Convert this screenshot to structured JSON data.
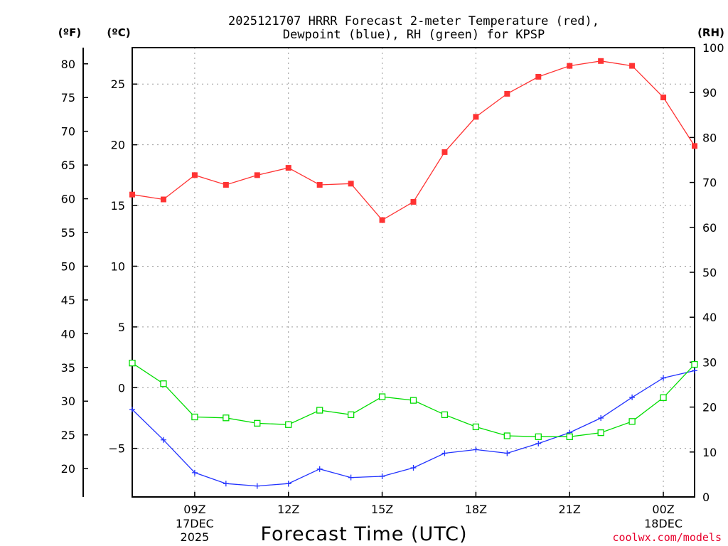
{
  "chart_data": {
    "type": "line",
    "title_line1": "2025121707 HRRR Forecast 2-meter Temperature (red),",
    "title_line2": "Dewpoint (blue), RH (green) for KPSP",
    "units": {
      "fahrenheit": "(ºF)",
      "celsius": "(ºC)",
      "rh": "(RH)"
    },
    "xlabel": "Forecast Time (UTC)",
    "credit": "coolwx.com/models",
    "x_hours": [
      7,
      8,
      9,
      10,
      11,
      12,
      13,
      14,
      15,
      16,
      17,
      18,
      19,
      20,
      21,
      22,
      23,
      24,
      25
    ],
    "xlim": [
      7,
      25
    ],
    "x_ticks": [
      {
        "hour": 9,
        "label": "09Z",
        "date": "17DEC",
        "year": "2025"
      },
      {
        "hour": 12,
        "label": "12Z"
      },
      {
        "hour": 15,
        "label": "15Z"
      },
      {
        "hour": 18,
        "label": "18Z"
      },
      {
        "hour": 21,
        "label": "21Z"
      },
      {
        "hour": 24,
        "label": "00Z",
        "date": "18DEC"
      }
    ],
    "celsius_axis": {
      "ylim": [
        -9,
        28
      ],
      "ticks": [
        "25",
        "20",
        "15",
        "10",
        "5",
        "0",
        "−5"
      ],
      "tick_values": [
        25,
        20,
        15,
        10,
        5,
        0,
        -5
      ]
    },
    "fahrenheit_axis": {
      "ticks": [
        "80",
        "75",
        "70",
        "65",
        "60",
        "55",
        "50",
        "45",
        "40",
        "35",
        "30",
        "25",
        "20"
      ],
      "tick_values": [
        80,
        75,
        70,
        65,
        60,
        55,
        50,
        45,
        40,
        35,
        30,
        25,
        20
      ]
    },
    "rh_axis": {
      "ylim": [
        0,
        100
      ],
      "ticks": [
        "100",
        "90",
        "80",
        "70",
        "60",
        "50",
        "40",
        "30",
        "20",
        "10",
        "0"
      ],
      "tick_values": [
        100,
        90,
        80,
        70,
        60,
        50,
        40,
        30,
        20,
        10,
        0
      ]
    },
    "series": [
      {
        "name": "Temperature",
        "color": "#ff3333",
        "marker": "filled-square",
        "axis": "celsius",
        "values": [
          15.9,
          15.5,
          17.5,
          16.7,
          17.5,
          18.1,
          16.7,
          16.8,
          13.8,
          15.3,
          19.4,
          22.3,
          24.2,
          25.6,
          26.5,
          26.9,
          26.5,
          23.9,
          19.9
        ]
      },
      {
        "name": "Dewpoint",
        "color": "#2233ff",
        "marker": "plus",
        "axis": "celsius",
        "values": [
          -1.8,
          -4.3,
          -7.0,
          -7.9,
          -8.1,
          -7.9,
          -6.7,
          -7.4,
          -7.3,
          -6.6,
          -5.4,
          -5.1,
          -5.4,
          -4.6,
          -3.7,
          -2.5,
          -0.8,
          0.8,
          1.4
        ]
      },
      {
        "name": "RH",
        "color": "#00dd00",
        "marker": "open-square",
        "axis": "rh",
        "values": [
          29.8,
          25.2,
          17.8,
          17.6,
          16.4,
          16.1,
          19.3,
          18.3,
          22.3,
          21.5,
          18.3,
          15.6,
          13.6,
          13.4,
          13.4,
          14.3,
          16.8,
          22.1,
          29.5
        ]
      }
    ]
  }
}
